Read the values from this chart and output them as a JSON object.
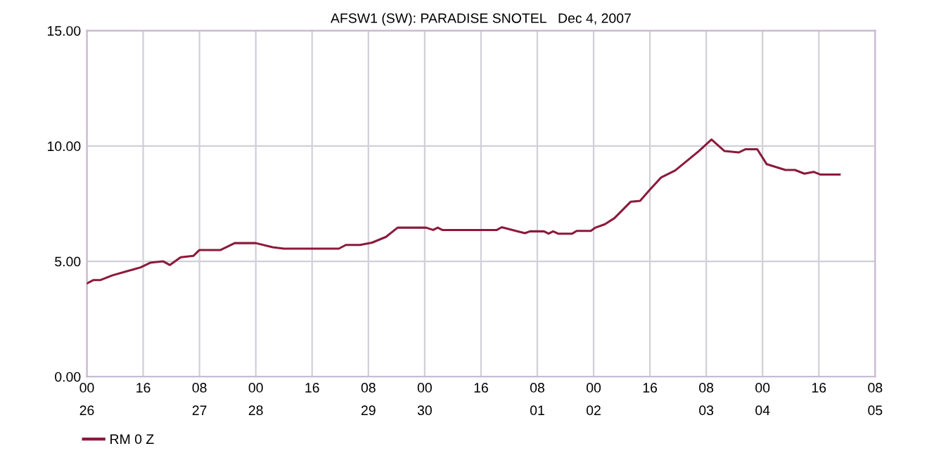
{
  "chart_data": {
    "type": "line",
    "title": "AFSW1 (SW): PARADISE SNOTEL   Dec 4, 2007",
    "x": [
      "2007-11-26T00:00",
      "2007-11-26T01:54",
      "2007-11-26T03:54",
      "2007-11-26T07:12",
      "2007-11-26T11:18",
      "2007-11-26T13:18",
      "2007-11-26T15:18",
      "2007-11-26T18:00",
      "2007-11-26T21:42",
      "2007-11-26T23:36",
      "2007-11-27T02:42",
      "2007-11-27T06:18",
      "2007-11-27T08:00",
      "2007-11-27T14:00",
      "2007-11-27T18:00",
      "2007-11-28T00:00",
      "2007-11-28T04:48",
      "2007-11-28T08:00",
      "2007-11-28T23:36",
      "2007-11-29T01:36",
      "2007-11-29T05:36",
      "2007-11-29T09:00",
      "2007-11-29T13:00",
      "2007-11-29T16:18",
      "2007-11-30T00:24",
      "2007-11-30T02:24",
      "2007-11-30T03:42",
      "2007-11-30T05:00",
      "2007-11-30T16:00",
      "2007-11-30T20:30",
      "2007-11-30T21:54",
      "2007-12-01T01:54",
      "2007-12-01T04:30",
      "2007-12-01T05:54",
      "2007-12-01T09:54",
      "2007-12-01T11:12",
      "2007-12-01T12:30",
      "2007-12-01T13:54",
      "2007-12-01T17:54",
      "2007-12-01T19:12",
      "2007-12-01T23:12",
      "2007-12-02T00:30",
      "2007-12-02T03:12",
      "2007-12-02T05:54",
      "2007-12-02T10:30",
      "2007-12-02T13:12",
      "2007-12-02T15:54",
      "2007-12-02T19:12",
      "2007-12-02T23:12",
      "2007-12-03T05:54",
      "2007-12-03T09:30",
      "2007-12-03T13:12",
      "2007-12-03T17:12",
      "2007-12-03T19:12",
      "2007-12-03T22:30",
      "2007-12-04T01:12",
      "2007-12-04T06:30",
      "2007-12-04T09:12",
      "2007-12-04T11:54",
      "2007-12-04T14:30",
      "2007-12-04T16:30",
      "2007-12-04T21:54"
    ],
    "series": [
      {
        "name": "RM 0 Z",
        "color": "#8b1a3a",
        "values": [
          4.04,
          4.19,
          4.19,
          4.39,
          4.57,
          4.65,
          4.74,
          4.94,
          5.0,
          4.84,
          5.18,
          5.24,
          5.49,
          5.49,
          5.79,
          5.79,
          5.61,
          5.55,
          5.55,
          5.71,
          5.71,
          5.81,
          6.06,
          6.46,
          6.46,
          6.36,
          6.46,
          6.36,
          6.36,
          6.36,
          6.48,
          6.32,
          6.22,
          6.3,
          6.3,
          6.2,
          6.3,
          6.2,
          6.2,
          6.32,
          6.32,
          6.46,
          6.61,
          6.87,
          7.58,
          7.62,
          8.09,
          8.64,
          8.94,
          9.78,
          10.28,
          9.78,
          9.72,
          9.86,
          9.86,
          9.21,
          8.96,
          8.96,
          8.8,
          8.88,
          8.76,
          8.76
        ]
      }
    ],
    "xlim": [
      "2007-11-26T00:00",
      "2007-12-05T08:00"
    ],
    "xticks": [
      {
        "value": "2007-11-26T00:00",
        "label": "00\n26"
      },
      {
        "value": "2007-11-26T16:00",
        "label": "16\n "
      },
      {
        "value": "2007-11-27T08:00",
        "label": "08\n27"
      },
      {
        "value": "2007-11-28T00:00",
        "label": "00\n28"
      },
      {
        "value": "2007-11-28T16:00",
        "label": "16\n "
      },
      {
        "value": "2007-11-29T08:00",
        "label": "08\n29"
      },
      {
        "value": "2007-11-30T00:00",
        "label": "00\n30"
      },
      {
        "value": "2007-11-30T16:00",
        "label": "16\n "
      },
      {
        "value": "2007-12-01T08:00",
        "label": "08\n01"
      },
      {
        "value": "2007-12-02T00:00",
        "label": "00\n02"
      },
      {
        "value": "2007-12-02T16:00",
        "label": "16\n "
      },
      {
        "value": "2007-12-03T08:00",
        "label": "08\n03"
      },
      {
        "value": "2007-12-04T00:00",
        "label": "00\n04"
      },
      {
        "value": "2007-12-04T16:00",
        "label": "16\n "
      },
      {
        "value": "2007-12-05T08:00",
        "label": "08\n05"
      }
    ],
    "ylim": [
      0,
      15
    ],
    "yticks": [
      {
        "value": 0,
        "label": "0.00"
      },
      {
        "value": 5,
        "label": "5.00"
      },
      {
        "value": 10,
        "label": "10.00"
      },
      {
        "value": 15,
        "label": "15.00"
      }
    ],
    "grid": true,
    "legend": "bottom left",
    "marker": "none",
    "line_style": "solid"
  }
}
